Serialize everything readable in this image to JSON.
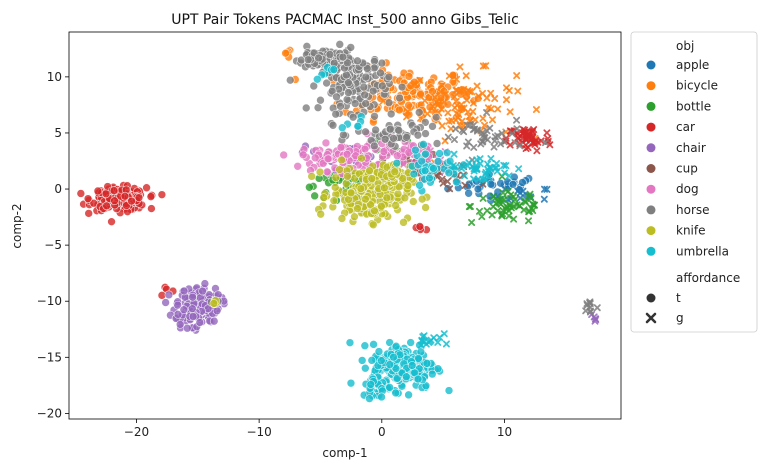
{
  "chart_data": {
    "type": "scatter",
    "title": "UPT Pair Tokens PACMAC Inst_500 anno Gibs_Telic",
    "xlabel": "comp-1",
    "ylabel": "comp-2",
    "xlim": [
      -25.5,
      19.5
    ],
    "ylim": [
      -20.5,
      14
    ],
    "xticks": [
      -20,
      -10,
      0,
      10
    ],
    "yticks": [
      -20,
      -15,
      -10,
      -5,
      0,
      5,
      10
    ],
    "grid": false,
    "legend": {
      "placement": "outside-right",
      "hue_title": "obj",
      "style_title": "affordance",
      "styles": [
        {
          "label": "t",
          "marker": "circle"
        },
        {
          "label": "g",
          "marker": "x"
        }
      ]
    },
    "series": [
      {
        "name": "apple",
        "color": "#1f77b4",
        "clusters": [
          {
            "affordance": "t",
            "cx": 9.5,
            "cy": 0.3,
            "sx": 2.0,
            "sy": 0.5,
            "n": 35
          },
          {
            "affordance": "g",
            "cx": 11.5,
            "cy": -0.6,
            "sx": 1.2,
            "sy": 0.4,
            "n": 15
          }
        ]
      },
      {
        "name": "bicycle",
        "color": "#ff7f0e",
        "clusters": [
          {
            "affordance": "t",
            "cx": 2.0,
            "cy": 8.5,
            "sx": 2.6,
            "sy": 1.1,
            "n": 140
          },
          {
            "affordance": "g",
            "cx": 6.5,
            "cy": 7.5,
            "sx": 2.2,
            "sy": 1.5,
            "n": 90
          },
          {
            "affordance": "t",
            "cx": -7.6,
            "cy": 12.2,
            "sx": 0.3,
            "sy": 0.2,
            "n": 5
          }
        ]
      },
      {
        "name": "bottle",
        "color": "#2ca02c",
        "clusters": [
          {
            "affordance": "t",
            "cx": -3.0,
            "cy": 0.3,
            "sx": 1.8,
            "sy": 0.5,
            "n": 40
          },
          {
            "affordance": "g",
            "cx": 10.5,
            "cy": -1.5,
            "sx": 1.6,
            "sy": 0.8,
            "n": 55
          },
          {
            "affordance": "t",
            "cx": 0.5,
            "cy": 3.5,
            "sx": 1.0,
            "sy": 0.5,
            "n": 10
          }
        ]
      },
      {
        "name": "car",
        "color": "#d62728",
        "clusters": [
          {
            "affordance": "t",
            "cx": -21.4,
            "cy": -0.9,
            "sx": 1.1,
            "sy": 0.5,
            "n": 200
          },
          {
            "affordance": "g",
            "cx": 12.0,
            "cy": 4.5,
            "sx": 0.9,
            "sy": 0.6,
            "n": 50
          },
          {
            "affordance": "t",
            "cx": 3.0,
            "cy": -3.5,
            "sx": 0.3,
            "sy": 0.2,
            "n": 6
          },
          {
            "affordance": "t",
            "cx": -17.5,
            "cy": -9.0,
            "sx": 0.3,
            "sy": 0.3,
            "n": 4
          }
        ]
      },
      {
        "name": "chair",
        "color": "#9467bd",
        "clusters": [
          {
            "affordance": "t",
            "cx": -15.0,
            "cy": -10.3,
            "sx": 0.9,
            "sy": 0.8,
            "n": 140
          },
          {
            "affordance": "t",
            "cx": -15.8,
            "cy": -11.5,
            "sx": 0.5,
            "sy": 0.6,
            "n": 30
          },
          {
            "affordance": "g",
            "cx": 17.3,
            "cy": -11.3,
            "sx": 0.1,
            "sy": 0.3,
            "n": 5
          },
          {
            "affordance": "t",
            "cx": -3.0,
            "cy": 3.0,
            "sx": 1.6,
            "sy": 0.6,
            "n": 25
          }
        ]
      },
      {
        "name": "cup",
        "color": "#8c564b",
        "clusters": [
          {
            "affordance": "t",
            "cx": 3.0,
            "cy": 1.8,
            "sx": 1.4,
            "sy": 0.6,
            "n": 30
          },
          {
            "affordance": "g",
            "cx": 5.5,
            "cy": 1.0,
            "sx": 1.2,
            "sy": 0.6,
            "n": 20
          }
        ]
      },
      {
        "name": "dog",
        "color": "#e377c2",
        "clusters": [
          {
            "affordance": "t",
            "cx": -3.5,
            "cy": 2.8,
            "sx": 1.5,
            "sy": 0.6,
            "n": 90
          },
          {
            "affordance": "t",
            "cx": 1.2,
            "cy": 3.6,
            "sx": 1.5,
            "sy": 0.6,
            "n": 35
          },
          {
            "affordance": "g",
            "cx": 4.0,
            "cy": 2.5,
            "sx": 1.0,
            "sy": 0.6,
            "n": 15
          }
        ]
      },
      {
        "name": "horse",
        "color": "#7f7f7f",
        "clusters": [
          {
            "affordance": "t",
            "cx": -2.2,
            "cy": 9.5,
            "sx": 1.4,
            "sy": 1.3,
            "n": 150
          },
          {
            "affordance": "t",
            "cx": -4.8,
            "cy": 11.6,
            "sx": 1.2,
            "sy": 0.5,
            "n": 60
          },
          {
            "affordance": "t",
            "cx": 1.5,
            "cy": 4.8,
            "sx": 1.8,
            "sy": 0.7,
            "n": 50
          },
          {
            "affordance": "g",
            "cx": 8.0,
            "cy": 4.5,
            "sx": 1.8,
            "sy": 0.9,
            "n": 40
          },
          {
            "affordance": "t",
            "cx": -13.5,
            "cy": -10.0,
            "sx": 0.3,
            "sy": 0.3,
            "n": 5
          },
          {
            "affordance": "g",
            "cx": 17.0,
            "cy": -10.5,
            "sx": 0.25,
            "sy": 0.4,
            "n": 10
          }
        ]
      },
      {
        "name": "knife",
        "color": "#bcbd22",
        "clusters": [
          {
            "affordance": "t",
            "cx": -0.9,
            "cy": -0.4,
            "sx": 1.6,
            "sy": 1.2,
            "n": 220
          },
          {
            "affordance": "t",
            "cx": 0.5,
            "cy": 1.5,
            "sx": 0.8,
            "sy": 0.4,
            "n": 30
          },
          {
            "affordance": "t",
            "cx": -13.6,
            "cy": -10.1,
            "sx": 0.2,
            "sy": 0.2,
            "n": 3
          }
        ]
      },
      {
        "name": "umbrella",
        "color": "#17becf",
        "clusters": [
          {
            "affordance": "t",
            "cx": 1.8,
            "cy": -15.8,
            "sx": 1.3,
            "sy": 1.0,
            "n": 200
          },
          {
            "affordance": "t",
            "cx": -0.4,
            "cy": -17.6,
            "sx": 0.6,
            "sy": 0.5,
            "n": 40
          },
          {
            "affordance": "g",
            "cx": 3.9,
            "cy": -13.4,
            "sx": 0.5,
            "sy": 0.5,
            "n": 15
          },
          {
            "affordance": "t",
            "cx": 4.0,
            "cy": 2.0,
            "sx": 1.2,
            "sy": 0.8,
            "n": 40
          },
          {
            "affordance": "g",
            "cx": 8.0,
            "cy": 1.8,
            "sx": 1.5,
            "sy": 0.6,
            "n": 40
          },
          {
            "affordance": "t",
            "cx": -4.5,
            "cy": 10.5,
            "sx": 0.5,
            "sy": 0.3,
            "n": 6
          },
          {
            "affordance": "t",
            "cx": -2.3,
            "cy": 6.0,
            "sx": 0.5,
            "sy": 0.3,
            "n": 6
          }
        ]
      }
    ]
  }
}
